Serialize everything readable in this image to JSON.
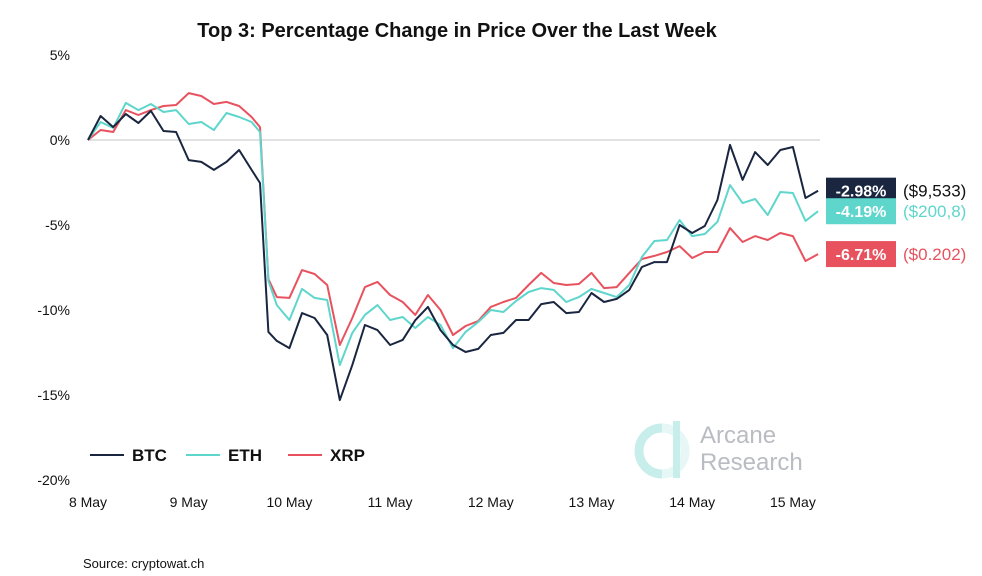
{
  "chart_data": {
    "type": "line",
    "title": "Top 3: Percentage Change in Price Over the Last Week",
    "xlabel": "",
    "ylabel": "",
    "ylim": [
      -20,
      5
    ],
    "yticks": [
      "5%",
      "0%",
      "-5%",
      "-10%",
      "-15%",
      "-20%"
    ],
    "ytick_values": [
      5,
      0,
      -5,
      -10,
      -15,
      -20
    ],
    "xticks": [
      "8 May",
      "9 May",
      "10 May",
      "11 May",
      "12 May",
      "13 May",
      "14 May",
      "15 May"
    ],
    "grid": "zero line only",
    "legend": "bottom-left",
    "x": [
      "8 May 00:00",
      "8 May 03:00",
      "8 May 06:00",
      "8 May 09:00",
      "8 May 12:00",
      "8 May 15:00",
      "8 May 18:00",
      "8 May 21:00",
      "9 May 00:00",
      "9 May 03:00",
      "9 May 06:00",
      "9 May 09:00",
      "9 May 12:00",
      "9 May 15:00",
      "9 May 17:00",
      "9 May 19:00",
      "9 May 21:00",
      "10 May 00:00",
      "10 May 03:00",
      "10 May 06:00",
      "10 May 09:00",
      "10 May 12:00",
      "10 May 15:00",
      "10 May 18:00",
      "10 May 21:00",
      "11 May 00:00",
      "11 May 03:00",
      "11 May 06:00",
      "11 May 09:00",
      "11 May 12:00",
      "11 May 15:00",
      "11 May 18:00",
      "11 May 21:00",
      "12 May 00:00",
      "12 May 03:00",
      "12 May 06:00",
      "12 May 09:00",
      "12 May 12:00",
      "12 May 15:00",
      "12 May 18:00",
      "12 May 21:00",
      "13 May 00:00",
      "13 May 03:00",
      "13 May 06:00",
      "13 May 09:00",
      "13 May 12:00",
      "13 May 15:00",
      "13 May 18:00",
      "13 May 21:00",
      "14 May 00:00",
      "14 May 03:00",
      "14 May 06:00",
      "14 May 09:00",
      "14 May 12:00",
      "14 May 15:00",
      "14 May 18:00",
      "14 May 21:00",
      "15 May 00:00",
      "15 May 03:00",
      "15 May 06:00"
    ],
    "series": [
      {
        "name": "BTC",
        "color": "#1a2640",
        "end_label": "-2.98%",
        "price": "($9,533)",
        "values": [
          0,
          1.41,
          0.76,
          1.53,
          1.0,
          1.71,
          0.53,
          0.47,
          -1.18,
          -1.29,
          -1.76,
          -1.29,
          -0.59,
          -1.76,
          -2.53,
          -11.29,
          -11.82,
          -12.24,
          -10.18,
          -10.47,
          -11.47,
          -15.3,
          -13.24,
          -10.88,
          -11.18,
          -12.06,
          -11.76,
          -10.6,
          -9.82,
          -11.18,
          -12.06,
          -12.47,
          -12.29,
          -11.47,
          -11.35,
          -10.59,
          -10.59,
          -9.65,
          -9.53,
          -10.18,
          -10.12,
          -9.0,
          -9.53,
          -9.35,
          -8.82,
          -7.47,
          -7.18,
          -7.18,
          -5.0,
          -5.47,
          -5.06,
          -3.53,
          -0.29,
          -2.35,
          -0.71,
          -1.47,
          -0.59,
          -0.41,
          -3.41,
          -2.98
        ]
      },
      {
        "name": "ETH",
        "color": "#5fd6cc",
        "end_label": "-4.19%",
        "price": "($200,8)",
        "values": [
          0,
          1.06,
          0.71,
          2.18,
          1.76,
          2.12,
          1.65,
          1.76,
          0.94,
          1.06,
          0.59,
          1.59,
          1.35,
          1.06,
          0.47,
          -8.29,
          -9.71,
          -10.59,
          -8.76,
          -9.29,
          -9.41,
          -13.24,
          -11.35,
          -10.29,
          -9.71,
          -10.59,
          -10.41,
          -11.06,
          -10.41,
          -10.88,
          -12.24,
          -11.29,
          -10.71,
          -10.0,
          -10.12,
          -9.47,
          -8.94,
          -8.71,
          -8.82,
          -9.53,
          -9.24,
          -8.76,
          -9.0,
          -9.24,
          -8.53,
          -6.88,
          -5.94,
          -5.88,
          -4.71,
          -5.65,
          -5.53,
          -4.82,
          -2.65,
          -3.71,
          -3.47,
          -4.41,
          -3.06,
          -3.12,
          -4.76,
          -4.19
        ]
      },
      {
        "name": "XRP",
        "color": "#e8525f",
        "end_label": "-6.71%",
        "price": "($0.202)",
        "values": [
          0,
          0.59,
          0.47,
          1.76,
          1.47,
          1.76,
          2.0,
          2.06,
          2.76,
          2.59,
          2.12,
          2.24,
          2.0,
          1.35,
          0.76,
          -8.18,
          -9.24,
          -9.29,
          -7.65,
          -7.88,
          -8.53,
          -12.06,
          -10.47,
          -8.65,
          -8.35,
          -9.12,
          -9.53,
          -10.29,
          -9.12,
          -10.0,
          -11.47,
          -10.94,
          -10.65,
          -9.82,
          -9.53,
          -9.29,
          -8.53,
          -7.82,
          -8.41,
          -8.53,
          -8.47,
          -7.82,
          -8.71,
          -8.65,
          -7.82,
          -7.0,
          -6.82,
          -6.59,
          -6.24,
          -6.94,
          -6.59,
          -6.59,
          -5.18,
          -6.0,
          -5.65,
          -5.88,
          -5.47,
          -5.65,
          -7.12,
          -6.71
        ]
      }
    ],
    "source": "Source: cryptowat.ch"
  },
  "watermark": {
    "line1": "Arcane",
    "line2": "Research"
  }
}
